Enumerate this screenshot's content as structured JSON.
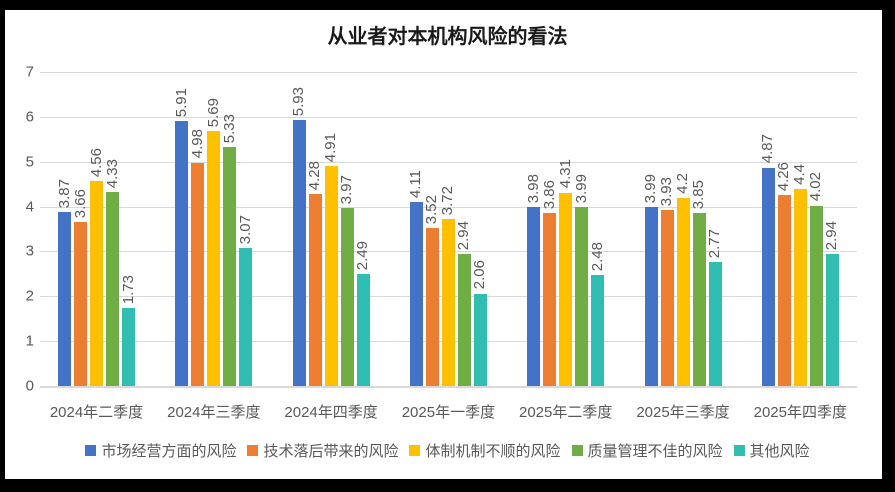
{
  "title": "从业者对本机构风险的看法",
  "colors": {
    "background": "#ffffff",
    "frame_border": "#000000",
    "gridline": "#d9d9d9",
    "axis_line": "#d9d9d9",
    "tick_text": "#595959",
    "data_label_text": "#595959",
    "title_text": "#1a1a1a"
  },
  "chart_data": {
    "type": "bar",
    "title": "从业者对本机构风险的看法",
    "categories": [
      "2024年二季度",
      "2024年三季度",
      "2024年四季度",
      "2025年一季度",
      "2025年二季度",
      "2025年三季度",
      "2025年四季度"
    ],
    "series": [
      {
        "name": "市场经营方面的风险",
        "color": "#4472C4",
        "values": [
          3.87,
          5.91,
          5.93,
          4.11,
          3.98,
          3.99,
          4.87
        ]
      },
      {
        "name": "技术落后带来的风险",
        "color": "#ED7D31",
        "values": [
          3.66,
          4.98,
          4.28,
          3.52,
          3.86,
          3.93,
          4.26
        ]
      },
      {
        "name": "体制机制不顺的风险",
        "color": "#FFC000",
        "values": [
          4.56,
          5.69,
          4.91,
          3.72,
          4.31,
          4.2,
          4.4
        ]
      },
      {
        "name": "质量管理不佳的风险",
        "color": "#70AD47",
        "values": [
          4.33,
          5.33,
          3.97,
          2.94,
          3.99,
          3.85,
          4.02
        ]
      },
      {
        "name": "其他风险",
        "color": "#2FBEB1",
        "values": [
          1.73,
          3.07,
          2.49,
          2.06,
          2.48,
          2.77,
          2.94
        ]
      }
    ],
    "xlabel": "",
    "ylabel": "",
    "ylim": [
      0,
      7
    ],
    "y_ticks": [
      0,
      1,
      2,
      3,
      4,
      5,
      6,
      7
    ],
    "grid": true,
    "legend_position": "bottom",
    "data_labels": "rotated-90-above-bars"
  }
}
